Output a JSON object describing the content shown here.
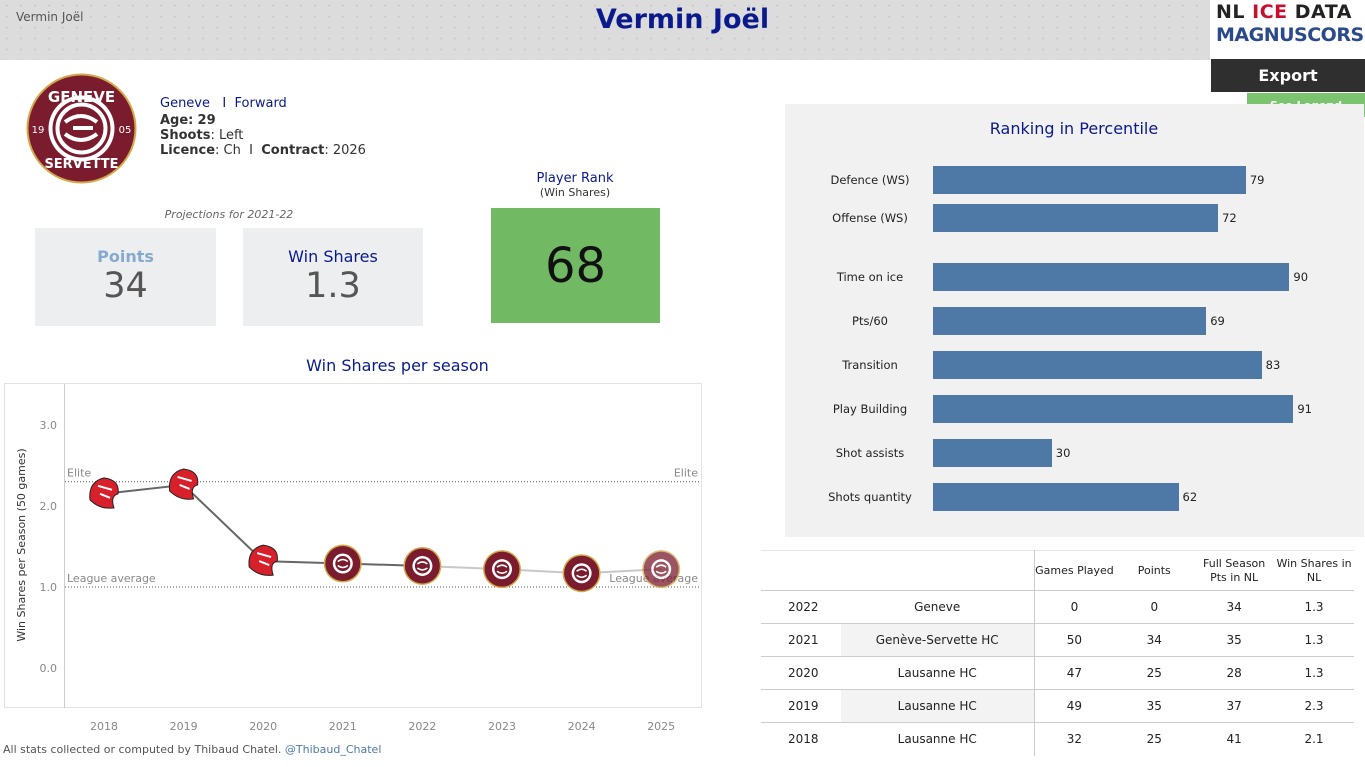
{
  "header": {
    "small_name": "Vermin Joël",
    "title": "Vermin Joël",
    "logo_line1_a": "NL ",
    "logo_line1_b": "ICE",
    "logo_line1_c": " DATA",
    "logo_line2": "MAGNUSCORSI",
    "export_label": "Export",
    "legend_label": "See Legend"
  },
  "team_logo": {
    "top_text": "GENEVE",
    "bottom_text": "SERVETTE",
    "left_num": "19",
    "right_num": "05",
    "color": "#7b1c2e"
  },
  "player": {
    "team": "Geneve",
    "separator": "I",
    "position": "Forward",
    "age_label": "Age:",
    "age": "29",
    "shoots_label": "Shoots",
    "shoots": ": Left",
    "licence_label": "Licence",
    "licence": ": Ch",
    "contract_label": "Contract",
    "contract": ": 2026"
  },
  "projections": {
    "label": "Projections for 2021-22",
    "points_label": "Points",
    "points": "34",
    "ws_label": "Win Shares",
    "ws": "1.3"
  },
  "player_rank": {
    "title": "Player Rank",
    "subtitle": "(Win Shares)",
    "value": "68",
    "color": "#71b963"
  },
  "chart_data": [
    {
      "type": "bar",
      "title": "Ranking in Percentile",
      "categories": [
        "Defence (WS)",
        "Offense (WS)",
        "Time on ice",
        "Pts/60",
        "Transition",
        "Play Building",
        "Shot assists",
        "Shots quantity"
      ],
      "values": [
        79,
        72,
        90,
        69,
        83,
        91,
        30,
        62
      ],
      "xlim": [
        0,
        100
      ],
      "color": "#4e79a7"
    },
    {
      "type": "line",
      "title": "Win Shares per season",
      "ylabel": "Win Shares per Season (50 games)",
      "x": [
        "2018",
        "2019",
        "2020",
        "2021",
        "2022",
        "2023",
        "2024",
        "2025"
      ],
      "y": [
        2.15,
        2.26,
        1.32,
        1.29,
        1.26,
        1.22,
        1.17,
        1.22
      ],
      "ylim": [
        -0.4,
        3.6
      ],
      "yticks": [
        "0.0",
        "1.0",
        "2.0",
        "3.0"
      ],
      "reference_lines": [
        {
          "label": "Elite",
          "value": 2.3
        },
        {
          "label": "League average",
          "value": 1.0
        }
      ],
      "markers": [
        "lion",
        "lion",
        "lion",
        "geneve",
        "geneve",
        "geneve",
        "geneve",
        "geneve"
      ]
    }
  ],
  "table": {
    "headers": [
      "Games Played",
      "Points",
      "Full Season Pts in NL",
      "Win Shares in NL"
    ],
    "rows": [
      {
        "year": "2022",
        "team": "Geneve",
        "gp": "0",
        "pts": "0",
        "full": "34",
        "ws": "1.3"
      },
      {
        "year": "2021",
        "team": "Genève-Servette HC",
        "gp": "50",
        "pts": "34",
        "full": "35",
        "ws": "1.3"
      },
      {
        "year": "2020",
        "team": "Lausanne HC",
        "gp": "47",
        "pts": "25",
        "full": "28",
        "ws": "1.3"
      },
      {
        "year": "2019",
        "team": "Lausanne HC",
        "gp": "49",
        "pts": "35",
        "full": "37",
        "ws": "2.3"
      },
      {
        "year": "2018",
        "team": "Lausanne HC",
        "gp": "32",
        "pts": "25",
        "full": "41",
        "ws": "2.1"
      }
    ]
  },
  "footer": {
    "text": "All stats collected or computed by Thibaud Chatel.",
    "link": "@Thibaud_Chatel"
  }
}
